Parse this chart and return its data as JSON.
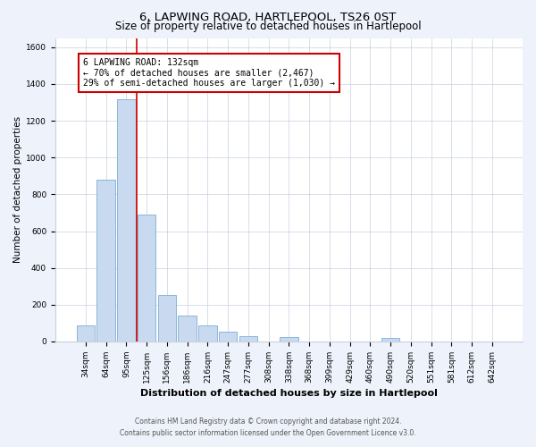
{
  "title": "6, LAPWING ROAD, HARTLEPOOL, TS26 0ST",
  "subtitle": "Size of property relative to detached houses in Hartlepool",
  "xlabel": "Distribution of detached houses by size in Hartlepool",
  "ylabel": "Number of detached properties",
  "bar_labels": [
    "34sqm",
    "64sqm",
    "95sqm",
    "125sqm",
    "156sqm",
    "186sqm",
    "216sqm",
    "247sqm",
    "277sqm",
    "308sqm",
    "338sqm",
    "368sqm",
    "399sqm",
    "429sqm",
    "460sqm",
    "490sqm",
    "520sqm",
    "551sqm",
    "581sqm",
    "612sqm",
    "642sqm"
  ],
  "bar_values": [
    88,
    880,
    1315,
    688,
    252,
    143,
    88,
    55,
    30,
    0,
    25,
    0,
    0,
    0,
    0,
    20,
    0,
    0,
    0,
    0,
    0
  ],
  "bar_color": "#c9d9f0",
  "bar_edge_color": "#7bafd4",
  "vline_x": 2.5,
  "vline_color": "#cc0000",
  "annotation_title": "6 LAPWING ROAD: 132sqm",
  "annotation_line1": "← 70% of detached houses are smaller (2,467)",
  "annotation_line2": "29% of semi-detached houses are larger (1,030) →",
  "annotation_box_facecolor": "#ffffff",
  "annotation_box_edgecolor": "#cc0000",
  "ylim": [
    0,
    1650
  ],
  "yticks": [
    0,
    200,
    400,
    600,
    800,
    1000,
    1200,
    1400,
    1600
  ],
  "footer_line1": "Contains HM Land Registry data © Crown copyright and database right 2024.",
  "footer_line2": "Contains public sector information licensed under the Open Government Licence v3.0.",
  "background_color": "#eef2fb",
  "plot_bg_color": "#ffffff",
  "grid_color": "#c8d0e0",
  "title_fontsize": 9.5,
  "subtitle_fontsize": 8.5,
  "xlabel_fontsize": 8,
  "ylabel_fontsize": 7.5,
  "tick_fontsize": 6.5,
  "annotation_fontsize": 7,
  "footer_fontsize": 5.5
}
